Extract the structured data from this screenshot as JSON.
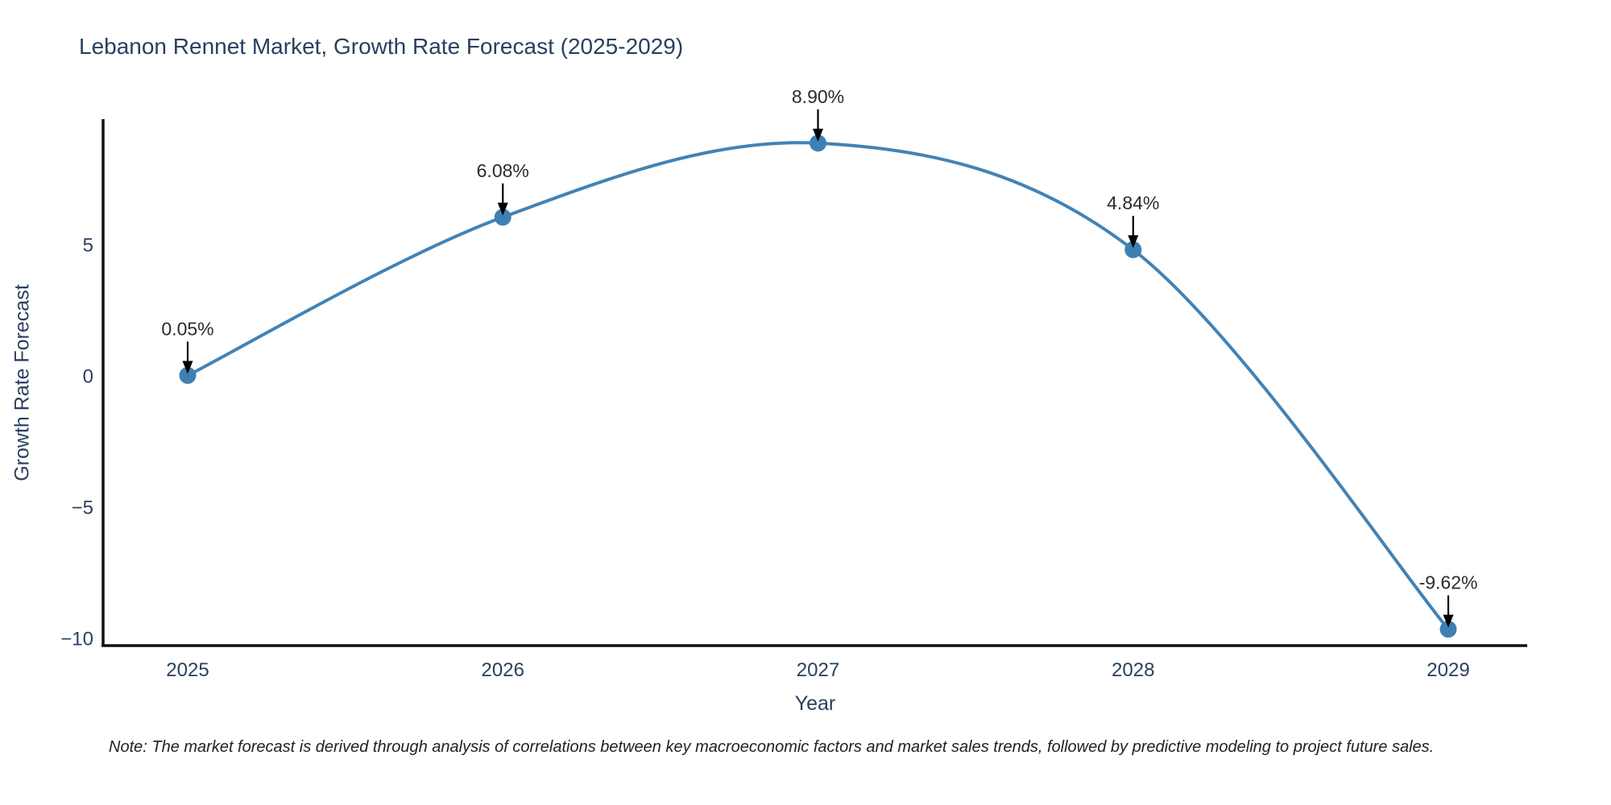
{
  "note": "Note: The market forecast is derived through analysis of correlations between key macroeconomic factors and market sales trends, followed by predictive modeling to project future sales.",
  "chart_data": {
    "type": "line",
    "title": "Lebanon Rennet Market, Growth Rate Forecast (2025-2029)",
    "xlabel": "Year",
    "ylabel": "Growth Rate Forecast",
    "x": [
      2025,
      2026,
      2027,
      2028,
      2029
    ],
    "values": [
      0.05,
      6.08,
      8.9,
      4.84,
      -9.62
    ],
    "point_labels": [
      "0.05%",
      "6.08%",
      "8.90%",
      "4.84%",
      "-9.62%"
    ],
    "xtick_labels": [
      "2025",
      "2026",
      "2027",
      "2028",
      "2029"
    ],
    "yticks": [
      5,
      0,
      -5,
      -10
    ],
    "ytick_labels": [
      "5",
      "0",
      "−5",
      "−10"
    ],
    "ylim": [
      -10.25,
      9.8
    ],
    "line_shape": "spline",
    "grid": false,
    "legend": false,
    "colors": {
      "line": "#4283b5",
      "marker": "#3f80b3",
      "axis_line": "#111111",
      "axis_text": "#2a3f5f",
      "annotation_text": "#2b2b2b",
      "annotation_arrow": "#000000"
    }
  }
}
